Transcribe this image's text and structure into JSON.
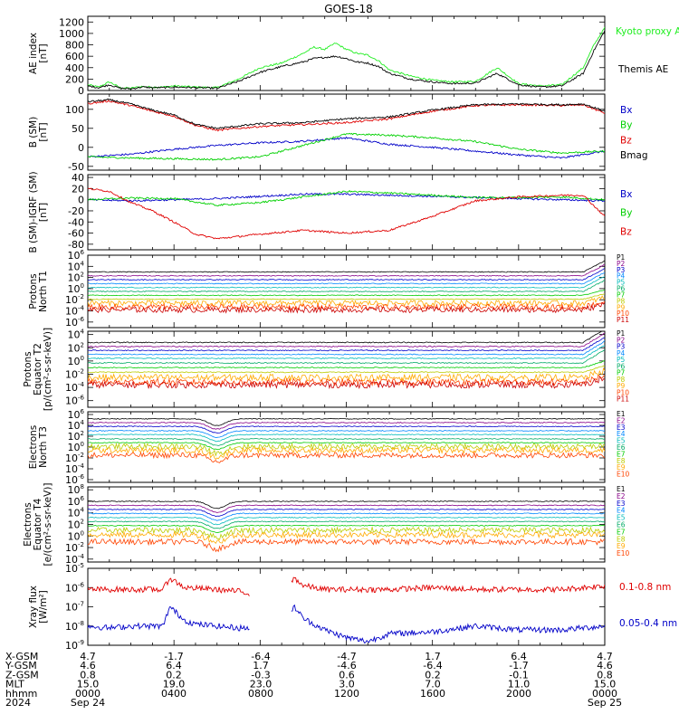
{
  "title": "GOES-18",
  "colors": {
    "black": "#000000",
    "red": "#e00000",
    "green": "#00d000",
    "blue": "#0000c8",
    "kyoto": "#22ee22",
    "proxy": "#22dd22",
    "channels": [
      "#000000",
      "#880088",
      "#0000cc",
      "#0088ff",
      "#00bbbb",
      "#00aa66",
      "#00cc00",
      "#bbcc00",
      "#ffaa00",
      "#ff4400",
      "#cc0000"
    ]
  },
  "chart_data": [
    {
      "type": "line",
      "ylabel": "AE index [nT]",
      "yticks": [
        "0",
        "200",
        "400",
        "600",
        "800",
        "1000",
        "1200"
      ],
      "ylim": [
        0,
        1300
      ],
      "series": [
        {
          "name": "Kyoto proxy AE",
          "color": "#22ee22",
          "x": [
            0,
            0.5,
            1,
            1.5,
            2,
            2.5,
            3,
            3.5,
            4,
            5,
            6,
            7,
            8,
            9,
            10,
            10.5,
            11,
            11.5,
            12,
            12.5,
            13,
            13.5,
            14,
            15,
            16,
            17,
            18,
            19,
            20,
            21,
            22,
            23,
            23.5,
            24
          ],
          "y": [
            100,
            60,
            150,
            50,
            40,
            70,
            60,
            60,
            80,
            60,
            50,
            200,
            400,
            480,
            650,
            760,
            720,
            830,
            720,
            650,
            620,
            520,
            360,
            250,
            180,
            150,
            160,
            400,
            120,
            80,
            100,
            400,
            800,
            1100
          ]
        },
        {
          "name": "Themis AE",
          "color": "#000000",
          "x": [
            0,
            0.5,
            1,
            1.5,
            2,
            2.5,
            3,
            3.5,
            4,
            5,
            6,
            7,
            8,
            9,
            10,
            10.5,
            11,
            11.5,
            12,
            12.5,
            13,
            13.5,
            14,
            15,
            16,
            17,
            18,
            19,
            20,
            21,
            22,
            23,
            23.5,
            24
          ],
          "y": [
            80,
            50,
            100,
            40,
            30,
            60,
            50,
            50,
            60,
            50,
            40,
            160,
            320,
            420,
            500,
            560,
            580,
            600,
            560,
            500,
            480,
            420,
            300,
            200,
            150,
            120,
            130,
            300,
            100,
            60,
            80,
            300,
            700,
            1050
          ]
        }
      ]
    },
    {
      "type": "line",
      "ylabel": "B (SM) [nT]",
      "yticks": [
        "-50",
        "0",
        "50",
        "100"
      ],
      "ylim": [
        -60,
        140
      ],
      "series": [
        {
          "name": "Bx",
          "color": "#0000c8",
          "x": [
            0,
            2,
            4,
            6,
            8,
            10,
            12,
            14,
            16,
            18,
            20,
            22,
            24
          ],
          "y": [
            -25,
            -18,
            -5,
            5,
            12,
            16,
            25,
            8,
            0,
            -10,
            -20,
            -28,
            -10
          ]
        },
        {
          "name": "By",
          "color": "#00d000",
          "x": [
            0,
            2,
            4,
            6,
            8,
            10,
            12,
            14,
            16,
            18,
            20,
            22,
            24
          ],
          "y": [
            -25,
            -28,
            -30,
            -32,
            -25,
            5,
            35,
            32,
            25,
            15,
            -5,
            -15,
            -10
          ]
        },
        {
          "name": "Bz",
          "color": "#e00000",
          "x": [
            0,
            1,
            2,
            3,
            4,
            5,
            6,
            8,
            10,
            12,
            14,
            16,
            18,
            20,
            22,
            23,
            24
          ],
          "y": [
            115,
            122,
            110,
            95,
            82,
            58,
            45,
            55,
            60,
            65,
            75,
            95,
            110,
            112,
            110,
            112,
            90
          ]
        },
        {
          "name": "Bmag",
          "color": "#000000",
          "x": [
            0,
            1,
            2,
            3,
            4,
            5,
            6,
            8,
            10,
            12,
            14,
            16,
            18,
            20,
            22,
            23,
            24
          ],
          "y": [
            120,
            125,
            114,
            98,
            85,
            60,
            50,
            62,
            65,
            75,
            80,
            98,
            112,
            114,
            112,
            114,
            95
          ]
        }
      ]
    },
    {
      "type": "line",
      "ylabel": "B (SM)-IGRF (SM) [nT]",
      "yticks": [
        "-80",
        "-60",
        "-40",
        "-20",
        "0",
        "20",
        "40"
      ],
      "ylim": [
        -90,
        45
      ],
      "series": [
        {
          "name": "Bx",
          "color": "#0000c8",
          "x": [
            0,
            2,
            4,
            6,
            8,
            10,
            12,
            14,
            16,
            18,
            20,
            22,
            24
          ],
          "y": [
            0,
            -2,
            0,
            2,
            6,
            10,
            10,
            8,
            6,
            4,
            2,
            0,
            -2
          ]
        },
        {
          "name": "By",
          "color": "#00d000",
          "x": [
            0,
            2,
            4,
            6,
            8,
            10,
            12,
            14,
            16,
            18,
            20,
            22,
            24
          ],
          "y": [
            0,
            3,
            2,
            -10,
            -5,
            5,
            15,
            12,
            8,
            4,
            4,
            5,
            0
          ]
        },
        {
          "name": "Bz",
          "color": "#e00000",
          "x": [
            0,
            1,
            2,
            3,
            4,
            5,
            6,
            8,
            10,
            12,
            14,
            16,
            18,
            20,
            22,
            23,
            24
          ],
          "y": [
            20,
            15,
            -5,
            -20,
            -40,
            -62,
            -70,
            -62,
            -55,
            -60,
            -55,
            -30,
            -2,
            5,
            8,
            8,
            -30
          ]
        }
      ]
    },
    {
      "type": "line",
      "ylabel": "Protons North T1",
      "yscale": "log",
      "yticks_exp": [
        -6,
        -4,
        -2,
        0,
        2,
        4,
        6
      ],
      "ylim_exp": [
        -7,
        6
      ],
      "channels": [
        "P1",
        "P2",
        "P3",
        "P4",
        "P5",
        "P6",
        "P7",
        "P8",
        "P9",
        "P10",
        "P11"
      ],
      "levels_exp": [
        3.0,
        2.3,
        1.6,
        0.9,
        0.2,
        -0.5,
        -1.2,
        -1.9,
        -2.6,
        -3.3,
        -3.8
      ]
    },
    {
      "type": "line",
      "ylabel": "Protons Equator T2 [p/(cm²-s-sr-keV)]",
      "yscale": "log",
      "yticks_exp": [
        -6,
        -4,
        -2,
        0,
        2,
        4
      ],
      "ylim_exp": [
        -7,
        4.5
      ],
      "channels": [
        "P1",
        "P2",
        "P3",
        "P4",
        "P5",
        "P6",
        "P7",
        "P8",
        "P9",
        "P10",
        "P11"
      ],
      "levels_exp": [
        2.8,
        2.2,
        1.6,
        1.0,
        0.4,
        -0.3,
        -1.0,
        -1.7,
        -2.5,
        -3.2,
        -3.6
      ]
    },
    {
      "type": "line",
      "ylabel": "Electrons North T3",
      "yscale": "log",
      "yticks_exp": [
        -6,
        -4,
        -2,
        0,
        2,
        4,
        6
      ],
      "ylim_exp": [
        -6.5,
        6.5
      ],
      "channels": [
        "E1",
        "E2",
        "E3",
        "E4",
        "E5",
        "E6",
        "E7",
        "E8",
        "E9",
        "E10"
      ],
      "levels_exp": [
        5.2,
        4.5,
        3.8,
        3.0,
        2.3,
        1.5,
        0.8,
        0.1,
        -0.6,
        -1.5
      ]
    },
    {
      "type": "line",
      "ylabel": "Electrons Equator T4 [e/(cm²-s-sr-keV)]",
      "yscale": "log",
      "yticks_exp": [
        -4,
        -2,
        0,
        2,
        4,
        6,
        8
      ],
      "ylim_exp": [
        -4.5,
        8.5
      ],
      "channels": [
        "E1",
        "E2",
        "E3",
        "E4",
        "E5",
        "E6",
        "E7",
        "E8",
        "E9",
        "E10"
      ],
      "levels_exp": [
        6.0,
        5.3,
        4.6,
        3.9,
        3.2,
        2.5,
        1.8,
        1.0,
        0.2,
        -1.0
      ]
    },
    {
      "type": "line",
      "ylabel": "Xray flux [W/m²]",
      "yscale": "log",
      "yticks_exp": [
        -9,
        -8,
        -7,
        -6,
        -5
      ],
      "ylim_exp": [
        -9,
        -5
      ],
      "series": [
        {
          "name": "0.1-0.8 nm",
          "color": "#e00000",
          "x": [
            0,
            2,
            3.5,
            3.8,
            4.5,
            6,
            7,
            7.5,
            9,
            9.6,
            10,
            11,
            12,
            14,
            16,
            18,
            20,
            22,
            24
          ],
          "y": [
            -6.1,
            -6.1,
            -6.1,
            -5.5,
            -6.0,
            -6.1,
            -6.2,
            -6.3,
            -6.2,
            -5.5,
            -5.9,
            -6.1,
            -6.1,
            -6.1,
            -6.0,
            -6.1,
            -6.1,
            -6.1,
            -5.9
          ]
        },
        {
          "name": "0.05-0.4 nm",
          "color": "#0000c8",
          "x": [
            0,
            1,
            2,
            3,
            3.5,
            3.8,
            4.5,
            5,
            6,
            7,
            7.5,
            9,
            9.6,
            10,
            11,
            12,
            13,
            14,
            16,
            18,
            20,
            22,
            24
          ],
          "y": [
            -8.0,
            -8.1,
            -8.0,
            -8.0,
            -8.0,
            -7.0,
            -7.7,
            -7.9,
            -8.0,
            -8.1,
            -8.1,
            -8.1,
            -7.0,
            -7.6,
            -8.2,
            -8.6,
            -8.8,
            -8.4,
            -8.3,
            -8.0,
            -8.2,
            -8.2,
            -8.0
          ]
        }
      ]
    }
  ],
  "axis_footer": {
    "rows": [
      {
        "label": "X-GSM",
        "values": [
          "4.7",
          "-1.7",
          "-6.4",
          "-4.7",
          "1.7",
          "6.4",
          "4.7"
        ]
      },
      {
        "label": "Y-GSM",
        "values": [
          "4.6",
          "6.4",
          "1.7",
          "-4.6",
          "-6.4",
          "-1.7",
          "4.6"
        ]
      },
      {
        "label": "Z-GSM",
        "values": [
          "0.8",
          "0.2",
          "-0.3",
          "0.6",
          "0.2",
          "-0.1",
          "0.8"
        ]
      },
      {
        "label": "MLT",
        "values": [
          "15.0",
          "19.0",
          "23.0",
          "3.0",
          "7.0",
          "11.0",
          "15.0"
        ]
      },
      {
        "label": "hhmm",
        "values": [
          "0000",
          "0400",
          "0800",
          "1200",
          "1600",
          "2000",
          "0000"
        ]
      },
      {
        "label": "2024",
        "values": [
          "Sep 24",
          "",
          "",
          "",
          "",
          "",
          "Sep 25"
        ]
      }
    ]
  }
}
